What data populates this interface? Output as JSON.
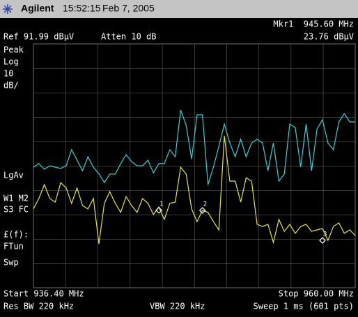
{
  "header": {
    "brand": "Agilent",
    "time": "15:52:15",
    "date": "Feb 7, 2005"
  },
  "readout": {
    "marker": "Mkr1  945.60 MHz",
    "ref": "Ref 91.99 dBµV",
    "atten": "Atten 10 dB",
    "level": "23.76 dBµV"
  },
  "side_labels": [
    "Peak",
    "Log",
    "10",
    "dB/",
    "LgAv",
    "W1  M2",
    "S3  FC",
    "£(f):",
    "FTun",
    "Swp"
  ],
  "footer": {
    "start": "Start 936.40 MHz",
    "stop": "Stop 960.00 MHz",
    "rbw": "Res BW 220 kHz",
    "vbw": "VBW 220 kHz",
    "sweep": "Sweep 1 ms (601 pts)"
  },
  "chart_data": {
    "type": "line",
    "x": [
      936.4,
      936.8,
      937.2,
      937.6,
      938,
      938.4,
      938.8,
      939.2,
      939.6,
      940,
      940.4,
      940.8,
      941.2,
      941.6,
      942,
      942.4,
      942.8,
      943.2,
      943.6,
      944,
      944.4,
      944.8,
      945.2,
      945.6,
      946,
      946.4,
      946.8,
      947.2,
      947.6,
      948,
      948.4,
      948.8,
      949.2,
      949.6,
      950,
      950.4,
      950.8,
      951.2,
      951.6,
      952,
      952.4,
      952.8,
      953.2,
      953.6,
      954,
      954.4,
      954.8,
      955.2,
      955.6,
      956,
      956.4,
      956.8,
      957.2,
      957.6,
      958,
      958.4,
      958.8,
      959.2,
      959.6,
      960
    ],
    "series": [
      {
        "color": "#33d6d6",
        "values": [
          41.4,
          42.9,
          40.6,
          42,
          41.4,
          40.9,
          42,
          48.6,
          44.3,
          40,
          45.7,
          41.4,
          38.8,
          35.1,
          38.6,
          38.6,
          42.9,
          46.6,
          43.7,
          42,
          42,
          44.3,
          39.1,
          42.9,
          42.9,
          48.6,
          45.7,
          64.9,
          58.6,
          44.8,
          62.9,
          62.9,
          34.3,
          41.4,
          50,
          59.1,
          51.4,
          45.7,
          52.9,
          45.7,
          51.4,
          52.9,
          51.4,
          40,
          51.4,
          35.7,
          38.6,
          59.1,
          57.7,
          41.4,
          59.1,
          40,
          57.1,
          60.9,
          51.4,
          48.6,
          60,
          63.4,
          60,
          60
        ]
      },
      {
        "color": "#e8e832",
        "values": [
          24.3,
          28.6,
          34.3,
          28.6,
          27.1,
          35.1,
          32.9,
          26.6,
          32.9,
          25.7,
          24.3,
          28.6,
          10,
          26.6,
          31.4,
          26.6,
          22.9,
          29.4,
          25.7,
          22.9,
          28.6,
          26.6,
          22,
          25.1,
          20,
          26.6,
          27.1,
          41.4,
          38.6,
          24.3,
          19.1,
          23.7,
          22.9,
          19.1,
          15.7,
          54.3,
          35.7,
          35.7,
          27.1,
          37.1,
          35.7,
          18,
          17.1,
          18,
          10.6,
          20,
          15.1,
          18,
          14.3,
          17.1,
          18,
          15.1,
          15.7,
          16.3,
          11.4,
          17.1,
          18.6,
          14.3,
          15.7,
          13.4
        ]
      }
    ],
    "markers": [
      {
        "label": "1",
        "x": 945.6,
        "y": 23.76
      },
      {
        "label": "2",
        "x": 948.8,
        "y": 23.7
      },
      {
        "label": "3",
        "x": 957.6,
        "y": 11.4
      }
    ],
    "xlim": [
      936.4,
      960
    ],
    "ylim": [
      -8.01,
      91.99
    ]
  }
}
